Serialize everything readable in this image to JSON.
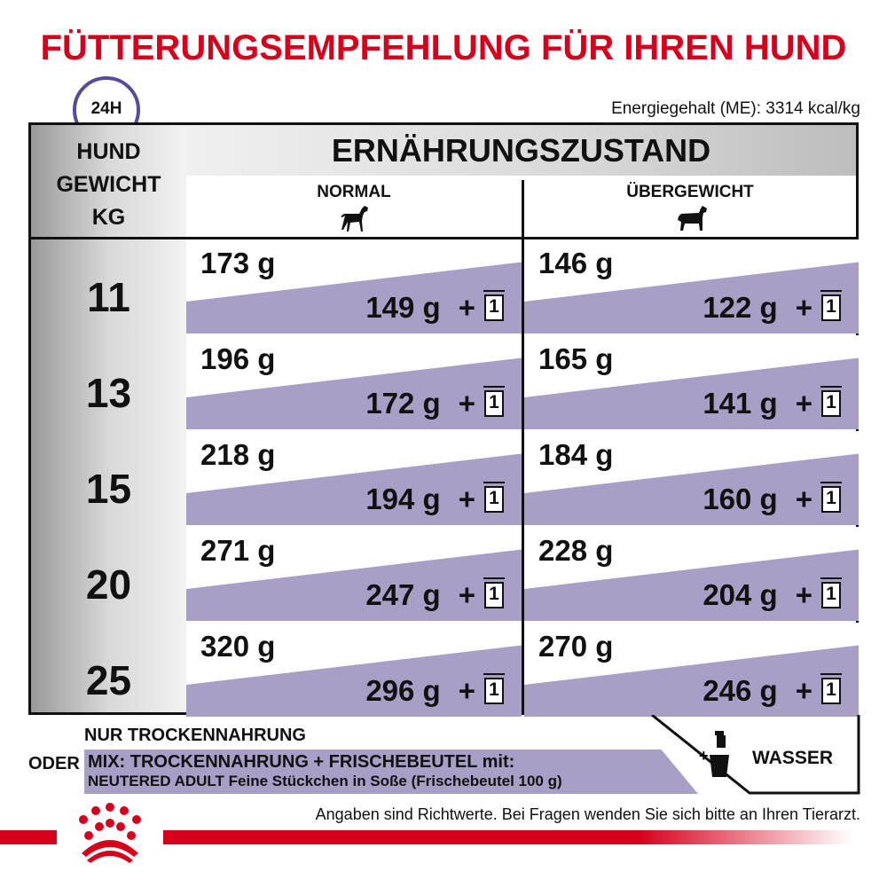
{
  "title": "FÜTTERUNGSEMPFEHLUNG FÜR IHREN HUND",
  "clock_label": "24H",
  "energy": "Energiegehalt (ME): 3314 kcal/kg",
  "table": {
    "weight_header": [
      "HUND",
      "GEWICHT",
      "KG"
    ],
    "group_header": "ERNÄHRUNGSZUSTAND",
    "columns": [
      {
        "label": "NORMAL",
        "icon": "dog-normal-icon"
      },
      {
        "label": "ÜBERGEWICHT",
        "icon": "dog-overweight-icon"
      }
    ],
    "pouch_count": "1",
    "plus": "+",
    "rows": [
      {
        "kg": "11",
        "normal": {
          "dry": "173 g",
          "mix": "149 g"
        },
        "over": {
          "dry": "146 g",
          "mix": "122 g"
        }
      },
      {
        "kg": "13",
        "normal": {
          "dry": "196 g",
          "mix": "172 g"
        },
        "over": {
          "dry": "165 g",
          "mix": "141 g"
        }
      },
      {
        "kg": "15",
        "normal": {
          "dry": "218 g",
          "mix": "194 g"
        },
        "over": {
          "dry": "184 g",
          "mix": "160 g"
        }
      },
      {
        "kg": "20",
        "normal": {
          "dry": "271 g",
          "mix": "247 g"
        },
        "over": {
          "dry": "228 g",
          "mix": "204 g"
        }
      },
      {
        "kg": "25",
        "normal": {
          "dry": "320 g",
          "mix": "296 g"
        },
        "over": {
          "dry": "270 g",
          "mix": "246 g"
        }
      }
    ]
  },
  "legend": {
    "dry_only": "NUR TROCKENNAHRUNG",
    "or": "ODER",
    "mix_line1": "MIX: TROCKENNAHRUNG + FRISCHEBEUTEL mit:",
    "mix_line2": "NEUTERED ADULT Feine Stückchen in Soße (Frischebeutel 100 g)",
    "water_plus": "+",
    "water": "WASSER"
  },
  "note": "Angaben sind Richtwerte. Bei Fragen wenden Sie sich bitte an Ihren Tierarzt.",
  "colors": {
    "brand_red": "#d6001c",
    "mix_purple": "#a99fc6",
    "clock_purple": "#5b4a9a"
  }
}
